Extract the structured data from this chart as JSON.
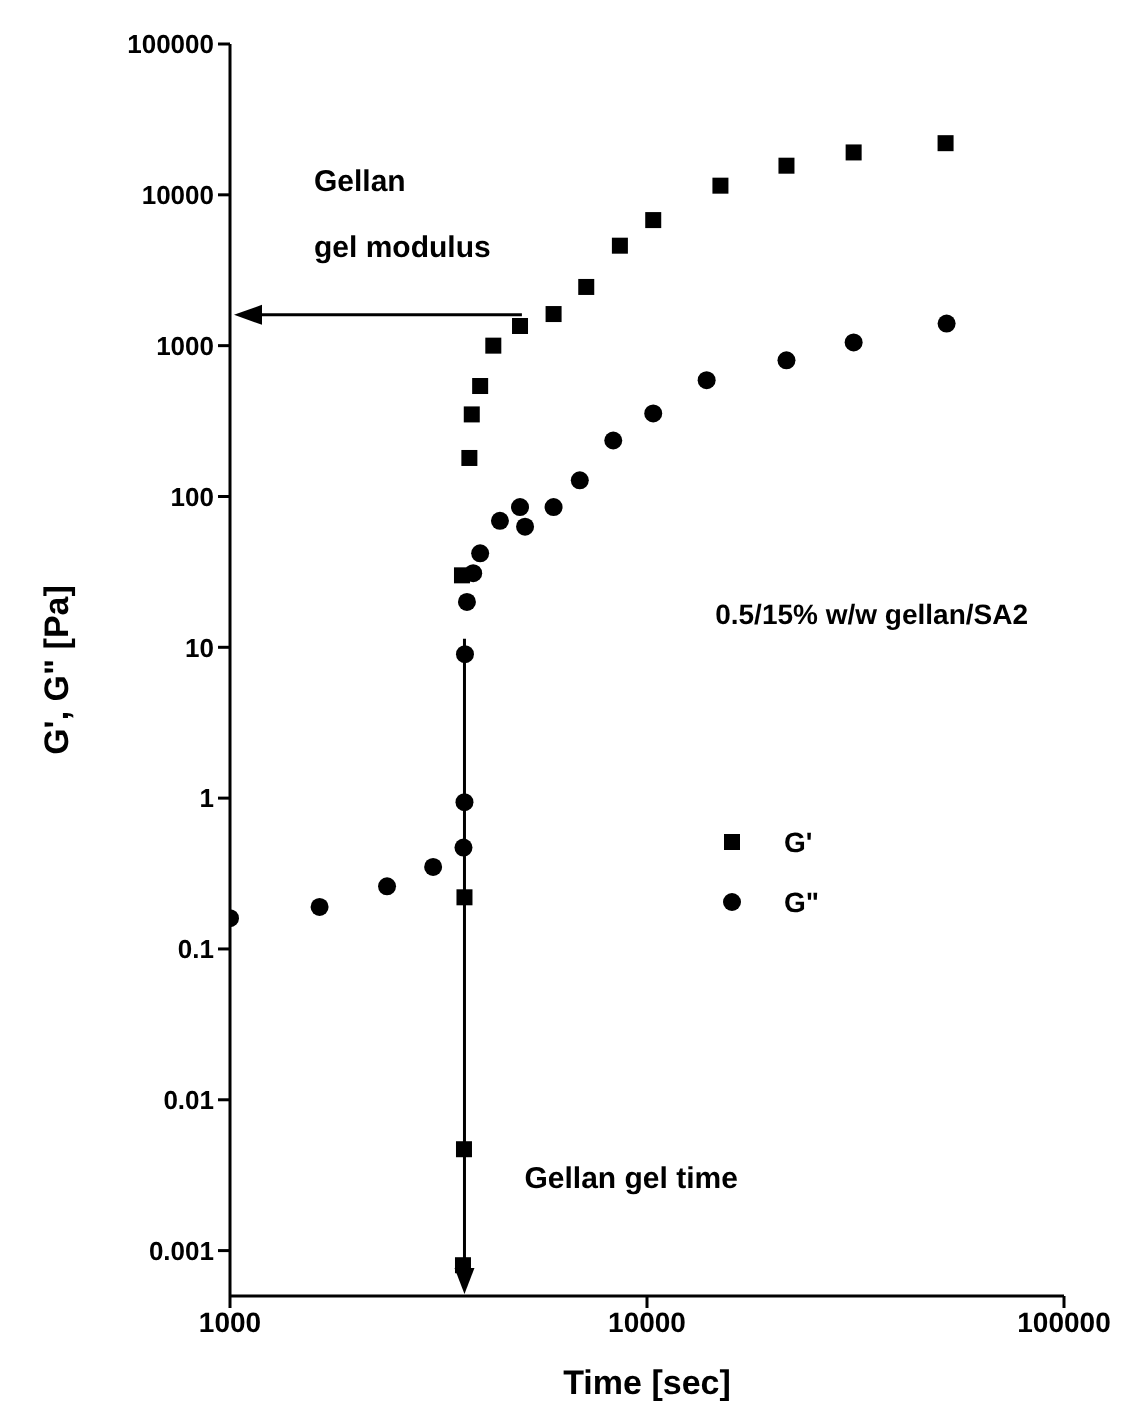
{
  "chart_data": {
    "type": "scatter",
    "xlabel": "Time [sec]",
    "ylabel": "G', G\" [Pa]",
    "log": "xy",
    "xlim": [
      1000,
      100000
    ],
    "xticks": [
      1000,
      10000,
      100000
    ],
    "ylim": [
      0.0005,
      100000
    ],
    "yticks": [
      0.001,
      0.01,
      0.1,
      1,
      10,
      100,
      1000,
      10000,
      100000
    ],
    "grid": false,
    "legend": "right",
    "series": [
      {
        "name": "G'",
        "color": "#000000",
        "marker": "square",
        "x": [
          3620,
          3640,
          3650,
          3600,
          3750,
          3800,
          3980,
          4280,
          4960,
          5970,
          7150,
          8610,
          10350,
          15000,
          21600,
          31300,
          52000
        ],
        "values": [
          0.0008,
          0.0047,
          0.22,
          30,
          180,
          350,
          540,
          1000,
          1350,
          1620,
          2450,
          4600,
          6800,
          11500,
          15600,
          19100,
          22000
        ]
      },
      {
        "name": "G\"",
        "color": "#000000",
        "marker": "circle",
        "x": [
          1000,
          1640,
          2380,
          3070,
          3630,
          3650,
          3660,
          3700,
          3830,
          3980,
          4440,
          4960,
          5100,
          5970,
          6900,
          8300,
          10350,
          13900,
          21600,
          31300,
          52300
        ],
        "values": [
          0.16,
          0.19,
          0.26,
          0.35,
          0.47,
          0.94,
          9,
          20,
          31,
          42,
          69,
          85,
          63,
          85,
          128,
          235,
          355,
          590,
          800,
          1050,
          1400
        ]
      }
    ],
    "ref_lines": [
      {
        "axis": "y",
        "value": 1600,
        "label": "Gellan\ngel modulus"
      },
      {
        "axis": "x",
        "value": 3650,
        "label": "Gellan gel time"
      }
    ],
    "annotations": [
      "0.5/15% w/w gellan/SA2"
    ]
  }
}
